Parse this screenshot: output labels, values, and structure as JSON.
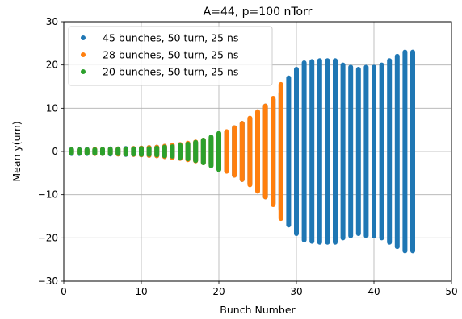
{
  "chart_data": {
    "type": "scatter",
    "title": "A=44, p=100 nTorr",
    "xlabel": "Bunch Number",
    "ylabel": "Mean y(um)",
    "xlim": [
      0,
      50
    ],
    "ylim": [
      -30,
      30
    ],
    "xticks": [
      0,
      10,
      20,
      30,
      40,
      50
    ],
    "yticks": [
      -30,
      -20,
      -10,
      0,
      10,
      20,
      30
    ],
    "xtick_labels": [
      "0",
      "10",
      "20",
      "30",
      "40",
      "50"
    ],
    "ytick_labels": [
      "−30",
      "−20",
      "−10",
      "0",
      "10",
      "20",
      "30"
    ],
    "grid": true,
    "legend_position": "top-left",
    "series": [
      {
        "name": "45 bunches, 50 turn, 25 ns",
        "color": "#1f77b4",
        "x": [
          1,
          2,
          3,
          4,
          5,
          6,
          7,
          8,
          9,
          10,
          11,
          12,
          13,
          14,
          15,
          16,
          17,
          18,
          19,
          20,
          21,
          22,
          23,
          24,
          25,
          26,
          27,
          28,
          29,
          30,
          31,
          32,
          33,
          34,
          35,
          36,
          37,
          38,
          39,
          40,
          41,
          42,
          43,
          44,
          45
        ],
        "y_min": [
          -0.5,
          -0.5,
          -0.5,
          -0.5,
          -0.5,
          -0.6,
          -0.6,
          -0.7,
          -0.7,
          -0.8,
          -0.9,
          -1.0,
          -1.2,
          -1.4,
          -1.6,
          -1.8,
          -2.1,
          -2.5,
          -2.9,
          -3.5,
          -4.5,
          -5.5,
          -6.5,
          -7.5,
          -9.0,
          -10.5,
          -12.0,
          -13.5,
          -17.0,
          -19.0,
          -20.5,
          -20.8,
          -21.0,
          -21.0,
          -21.0,
          -20.0,
          -19.5,
          -19.0,
          -19.5,
          -19.5,
          -20.0,
          -21.0,
          -22.0,
          -23.0,
          -23.0
        ],
        "y_max": [
          0.5,
          0.5,
          0.5,
          0.5,
          0.5,
          0.6,
          0.6,
          0.7,
          0.7,
          0.8,
          0.9,
          1.0,
          1.2,
          1.4,
          1.6,
          1.8,
          2.1,
          2.5,
          2.9,
          3.5,
          4.5,
          5.5,
          6.5,
          7.5,
          9.0,
          10.5,
          12.0,
          13.5,
          17.0,
          19.0,
          20.5,
          20.8,
          21.0,
          21.0,
          21.0,
          20.0,
          19.5,
          19.0,
          19.5,
          19.5,
          20.0,
          21.0,
          22.0,
          23.0,
          23.0
        ]
      },
      {
        "name": "28 bunches, 50 turn, 25 ns",
        "color": "#ff7f0e",
        "x": [
          1,
          2,
          3,
          4,
          5,
          6,
          7,
          8,
          9,
          10,
          11,
          12,
          13,
          14,
          15,
          16,
          17,
          18,
          19,
          20,
          21,
          22,
          23,
          24,
          25,
          26,
          27,
          28
        ],
        "y_min": [
          -0.4,
          -0.4,
          -0.4,
          -0.5,
          -0.5,
          -0.5,
          -0.6,
          -0.6,
          -0.7,
          -0.8,
          -0.9,
          -1.0,
          -1.2,
          -1.4,
          -1.6,
          -1.9,
          -2.2,
          -2.6,
          -3.0,
          -3.6,
          -4.6,
          -5.5,
          -6.5,
          -7.7,
          -9.2,
          -10.5,
          -12.3,
          -15.5
        ],
        "y_max": [
          0.4,
          0.4,
          0.4,
          0.5,
          0.5,
          0.5,
          0.6,
          0.6,
          0.7,
          0.8,
          0.9,
          1.0,
          1.2,
          1.4,
          1.6,
          1.9,
          2.2,
          2.6,
          3.0,
          3.6,
          4.6,
          5.5,
          6.5,
          7.7,
          9.2,
          10.5,
          12.3,
          15.5
        ]
      },
      {
        "name": "20 bunches, 50 turn, 25 ns",
        "color": "#2ca02c",
        "x": [
          1,
          2,
          3,
          4,
          5,
          6,
          7,
          8,
          9,
          10,
          11,
          12,
          13,
          14,
          15,
          16,
          17,
          18,
          19,
          20
        ],
        "y_min": [
          -0.4,
          -0.4,
          -0.4,
          -0.4,
          -0.5,
          -0.5,
          -0.5,
          -0.6,
          -0.6,
          -0.7,
          -0.7,
          -0.8,
          -1.0,
          -1.1,
          -1.4,
          -1.7,
          -2.1,
          -2.6,
          -3.3,
          -4.2
        ],
        "y_max": [
          0.4,
          0.4,
          0.4,
          0.4,
          0.5,
          0.5,
          0.5,
          0.6,
          0.6,
          0.7,
          0.7,
          0.8,
          1.0,
          1.1,
          1.4,
          1.7,
          2.1,
          2.6,
          3.3,
          4.2
        ]
      }
    ]
  }
}
